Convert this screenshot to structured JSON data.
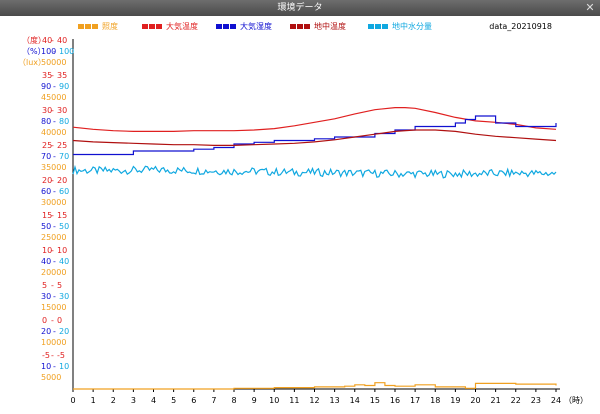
{
  "window": {
    "title": "環境データ"
  },
  "chart_data": {
    "type": "line",
    "file_label": "data_20210918",
    "x_unit": "（時）",
    "xlim": [
      0,
      24
    ],
    "x_ticks": [
      0,
      1,
      2,
      3,
      4,
      5,
      6,
      7,
      8,
      9,
      10,
      11,
      12,
      13,
      14,
      15,
      16,
      17,
      18,
      19,
      20,
      21,
      22,
      23,
      24
    ],
    "axis_units": {
      "temp": "（度）",
      "humidity": "（%）",
      "lux": "（lux）"
    },
    "axes": {
      "temp": {
        "range": [
          -10,
          40
        ],
        "ticks": [
          40,
          35,
          30,
          25,
          20,
          15,
          10,
          5,
          0,
          -5
        ]
      },
      "humidity": {
        "range": [
          0,
          100
        ],
        "ticks": [
          100,
          90,
          80,
          70,
          60,
          50,
          40,
          30,
          20,
          10
        ]
      },
      "lux": {
        "range": [
          0,
          50000
        ],
        "ticks": [
          50000,
          45000,
          40000,
          35000,
          30000,
          25000,
          20000,
          15000,
          10000,
          5000
        ]
      }
    },
    "series": [
      {
        "name": "照度",
        "axis": "lux",
        "color": "#f0a020",
        "style": "step",
        "x": [
          0,
          6,
          8,
          10,
          12,
          13.5,
          14,
          14.5,
          15,
          15.5,
          16,
          17,
          18,
          19.5,
          20,
          22,
          24
        ],
        "y": [
          0,
          0,
          100,
          200,
          300,
          400,
          600,
          500,
          900,
          500,
          400,
          600,
          300,
          100,
          800,
          700,
          500
        ]
      },
      {
        "name": "大気温度",
        "axis": "temp",
        "color": "#e02020",
        "style": "line",
        "x": [
          0,
          1,
          2,
          3,
          4,
          5,
          6,
          7,
          8,
          9,
          10,
          11,
          12,
          13,
          14,
          15,
          16,
          16.5,
          17,
          18,
          19,
          20,
          21,
          22,
          23,
          24
        ],
        "y": [
          27.4,
          27.1,
          26.9,
          26.8,
          26.8,
          26.8,
          26.9,
          26.9,
          26.9,
          27.0,
          27.2,
          27.6,
          28.1,
          28.6,
          29.3,
          29.9,
          30.2,
          30.2,
          30.1,
          29.5,
          28.8,
          28.3,
          28.1,
          27.8,
          27.3,
          27.1
        ]
      },
      {
        "name": "大気湿度",
        "axis": "humidity",
        "color": "#1010d0",
        "style": "step",
        "x": [
          0,
          1,
          2,
          3,
          4,
          5,
          6,
          7,
          8,
          9,
          10,
          11,
          12,
          13,
          14,
          15,
          16,
          17,
          18,
          19,
          19.5,
          20,
          21,
          22,
          23,
          24
        ],
        "y": [
          67,
          67,
          67,
          68,
          68,
          68,
          68.5,
          69,
          70,
          70.5,
          71,
          71,
          71.5,
          72,
          72,
          73,
          74,
          75,
          75,
          76,
          77,
          78,
          76,
          75,
          75,
          76
        ]
      },
      {
        "name": "地中温度",
        "axis": "temp",
        "color": "#b01010",
        "style": "line",
        "x": [
          0,
          1,
          2,
          3,
          4,
          5,
          6,
          7,
          8,
          9,
          10,
          11,
          12,
          13,
          14,
          15,
          16,
          17,
          18,
          19,
          20,
          21,
          22,
          23,
          24
        ],
        "y": [
          25.5,
          25.3,
          25.2,
          25.1,
          25.0,
          24.9,
          24.9,
          24.8,
          24.8,
          24.9,
          25.0,
          25.1,
          25.3,
          25.6,
          26.0,
          26.4,
          26.8,
          27.0,
          27.0,
          26.8,
          26.4,
          26.1,
          25.9,
          25.7,
          25.5
        ]
      },
      {
        "name": "地中水分量",
        "axis": "humidity",
        "color": "#10a8e0",
        "style": "noisy",
        "x": [
          0,
          1,
          2,
          3,
          4,
          5,
          6,
          7,
          8,
          9,
          10,
          11,
          12,
          13,
          14,
          15,
          16,
          17,
          18,
          19,
          20,
          21,
          22,
          23,
          24
        ],
        "y": [
          62.5,
          62.4,
          62.4,
          62.5,
          62.6,
          62.5,
          62.4,
          62.3,
          62.2,
          62.2,
          62.0,
          61.9,
          61.9,
          61.8,
          61.7,
          61.6,
          61.5,
          61.5,
          61.4,
          61.5,
          61.5,
          61.6,
          61.7,
          61.6,
          61.6
        ]
      }
    ]
  }
}
